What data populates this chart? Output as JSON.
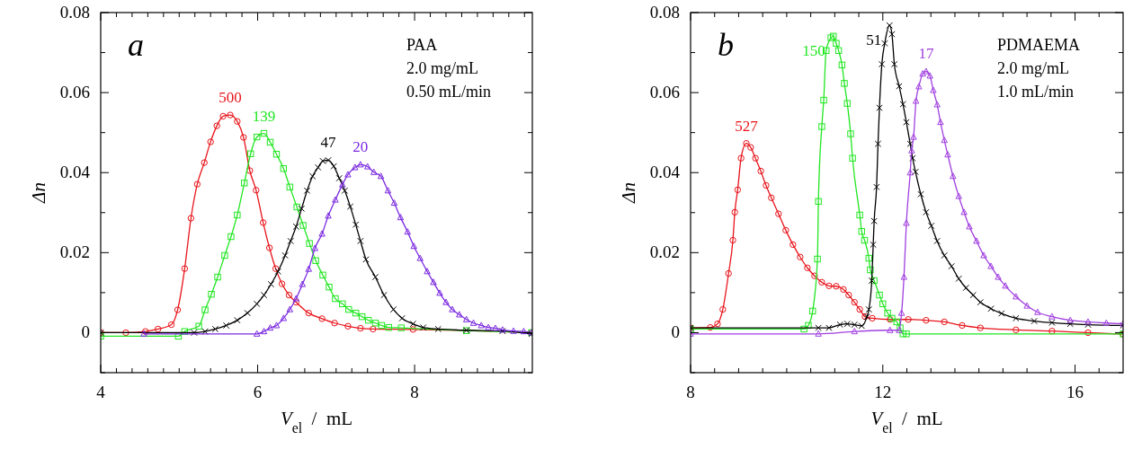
{
  "chart_data": [
    {
      "type": "line",
      "xlabel": "V$_{el}$  /  mL",
      "ylabel": "Δn",
      "annotations": [
        "a",
        "PAA",
        "2.0 mg/mL",
        "0.50 mL/min"
      ],
      "xlim": [
        4,
        9.5
      ],
      "ylim": [
        -0.01,
        0.08
      ],
      "xticks": [
        4,
        {
          "value": 4.2,
          "label": null
        },
        {
          "value": 4.4,
          "label": null
        },
        {
          "value": 4.6,
          "label": null
        },
        {
          "value": 4.8,
          "label": null
        },
        {
          "value": 5,
          "label": null
        },
        {
          "value": 5.2,
          "label": null
        },
        {
          "value": 5.4,
          "label": null
        },
        {
          "value": 5.6,
          "label": null
        },
        {
          "value": 5.8,
          "label": null
        },
        6,
        {
          "value": 6.2,
          "label": null
        },
        {
          "value": 6.4,
          "label": null
        },
        {
          "value": 6.6,
          "label": null
        },
        {
          "value": 6.8,
          "label": null
        },
        {
          "value": 7,
          "label": null
        },
        {
          "value": 7.2,
          "label": null
        },
        {
          "value": 7.4,
          "label": null
        },
        {
          "value": 7.6,
          "label": null
        },
        {
          "value": 7.8,
          "label": null
        },
        8,
        {
          "value": 8.2,
          "label": null
        },
        {
          "value": 8.4,
          "label": null
        },
        {
          "value": 8.6,
          "label": null
        },
        {
          "value": 8.8,
          "label": null
        },
        {
          "value": 9,
          "label": null
        },
        {
          "value": 9.2,
          "label": null
        },
        {
          "value": 9.4,
          "label": null
        }
      ],
      "yticks": [
        {
          "value": -0.01,
          "label": null
        },
        0,
        {
          "value": 0.01,
          "label": null
        },
        0.02,
        {
          "value": 0.03,
          "label": null
        },
        0.04,
        {
          "value": 0.05,
          "label": null
        },
        0.06,
        {
          "value": 0.07,
          "label": null
        },
        0.08
      ],
      "series": [
        {
          "name": "500",
          "color": "#e8141b",
          "marker": "circle",
          "x": [
            4.0,
            4.32,
            4.57,
            4.73,
            4.9,
            4.98,
            5.07,
            5.15,
            5.23,
            5.32,
            5.4,
            5.48,
            5.56,
            5.65,
            5.74,
            5.82,
            5.9,
            5.98,
            6.07,
            6.15,
            6.23,
            6.31,
            6.4,
            6.49,
            6.65,
            6.82,
            6.98,
            7.15,
            7.31,
            7.47,
            7.98,
            8.66,
            9.49
          ],
          "values": [
            0,
            0,
            0.0003,
            0.0009,
            0.002,
            0.0057,
            0.016,
            0.0286,
            0.0371,
            0.0425,
            0.0477,
            0.0517,
            0.0541,
            0.0544,
            0.0528,
            0.0488,
            0.0405,
            0.0356,
            0.0275,
            0.0212,
            0.016,
            0.0122,
            0.0094,
            0.0076,
            0.0049,
            0.0035,
            0.0024,
            0.0016,
            0.0011,
            0.0009,
            0.0008,
            null,
            0
          ]
        },
        {
          "name": "139",
          "color": "#22e622",
          "marker": "square",
          "x": [
            4.0,
            4.99,
            5.07,
            5.25,
            5.33,
            5.41,
            5.49,
            5.58,
            5.66,
            5.74,
            5.83,
            5.91,
            5.99,
            6.08,
            6.16,
            6.24,
            6.33,
            6.41,
            6.5,
            6.58,
            6.66,
            6.74,
            6.83,
            6.91,
            6.99,
            7.08,
            7.16,
            7.25,
            7.33,
            7.41,
            7.5,
            7.58,
            7.67,
            7.83,
            8.66,
            9.49
          ],
          "values": [
            -0.0009,
            -0.0009,
            0.0003,
            0.0016,
            0.0057,
            0.0096,
            0.0139,
            0.0193,
            0.024,
            0.0294,
            0.0374,
            0.0447,
            0.0489,
            0.0498,
            0.0476,
            0.0446,
            0.041,
            0.0364,
            0.0314,
            0.0268,
            0.0223,
            0.018,
            0.0144,
            0.0114,
            0.0085,
            0.0072,
            0.0058,
            0.0049,
            0.004,
            0.0031,
            0.0024,
            0.0018,
            0.0013,
            0.0012,
            0.0005,
            0
          ]
        },
        {
          "name": "47",
          "color": "#000000",
          "marker": "cross",
          "x": [
            4.0,
            5.19,
            5.33,
            5.46,
            5.6,
            5.74,
            5.87,
            5.99,
            6.08,
            6.17,
            6.26,
            6.35,
            6.42,
            6.49,
            6.56,
            6.63,
            6.7,
            6.77,
            6.83,
            6.9,
            6.97,
            7.04,
            7.11,
            7.18,
            7.25,
            7.31,
            7.38,
            7.5,
            7.61,
            7.73,
            7.84,
            7.98,
            8.11,
            8.3,
            8.66,
            9.12,
            9.49
          ],
          "values": [
            0,
            0,
            0.0003,
            0.0009,
            0.0018,
            0.0031,
            0.0049,
            0.0072,
            0.0094,
            0.0121,
            0.0153,
            0.0193,
            0.0229,
            0.0265,
            0.031,
            0.0355,
            0.0391,
            0.0413,
            0.0429,
            0.0431,
            0.0416,
            0.0386,
            0.0355,
            0.0315,
            0.027,
            0.0229,
            0.0183,
            0.0139,
            0.0094,
            0.0058,
            0.0036,
            0.0022,
            0.0013,
            0.0009,
            0.0006,
            0.0004,
            -0.0003
          ]
        },
        {
          "name": "20",
          "color": "#7b2be0",
          "marker": "triangle",
          "x": [
            4.55,
            5.99,
            6.08,
            6.16,
            6.24,
            6.33,
            6.41,
            6.49,
            6.57,
            6.65,
            6.73,
            6.82,
            6.9,
            6.99,
            7.08,
            7.15,
            7.24,
            7.31,
            7.4,
            7.48,
            7.57,
            7.66,
            7.74,
            7.82,
            7.91,
            7.99,
            8.07,
            8.16,
            8.24,
            8.32,
            8.4,
            8.48,
            8.57,
            8.66,
            8.75,
            8.85,
            8.94,
            9.03,
            9.12,
            9.26,
            9.39,
            9.49
          ],
          "values": [
            -0.0003,
            -0.0003,
            0.0003,
            0.0012,
            0.0018,
            0.0036,
            0.0058,
            0.0085,
            0.0121,
            0.0159,
            0.0211,
            0.0247,
            0.0292,
            0.0332,
            0.037,
            0.0395,
            0.0413,
            0.042,
            0.0415,
            0.0401,
            0.0391,
            0.0355,
            0.0324,
            0.0288,
            0.0252,
            0.0216,
            0.0186,
            0.0153,
            0.0126,
            0.0099,
            0.0076,
            0.0058,
            0.0045,
            0.0033,
            0.0024,
            0.0018,
            0.0013,
            0.0011,
            0.0007,
            0.0004,
            0.0003,
            0
          ]
        }
      ]
    },
    {
      "type": "line",
      "xlabel": "V$_{el}$  /  mL",
      "ylabel": "Δn",
      "annotations": [
        "b",
        "PDMAEMA",
        "2.0 mg/mL",
        "1.0 mL/min"
      ],
      "xlim": [
        8,
        17
      ],
      "ylim": [
        -0.01,
        0.08
      ],
      "xticks": [
        8,
        {
          "value": 8.5,
          "label": null
        },
        {
          "value": 9,
          "label": null
        },
        {
          "value": 9.5,
          "label": null
        },
        {
          "value": 10,
          "label": null
        },
        {
          "value": 10.5,
          "label": null
        },
        {
          "value": 11,
          "label": null
        },
        {
          "value": 11.5,
          "label": null
        },
        12,
        {
          "value": 12.5,
          "label": null
        },
        {
          "value": 13,
          "label": null
        },
        {
          "value": 13.5,
          "label": null
        },
        {
          "value": 14,
          "label": null
        },
        {
          "value": 14.5,
          "label": null
        },
        {
          "value": 15,
          "label": null
        },
        {
          "value": 15.5,
          "label": null
        },
        16,
        {
          "value": 16.5,
          "label": null
        }
      ],
      "yticks": [
        {
          "value": -0.01,
          "label": null
        },
        0,
        {
          "value": 0.01,
          "label": null
        },
        0.02,
        {
          "value": 0.03,
          "label": null
        },
        0.04,
        {
          "value": 0.05,
          "label": null
        },
        0.06,
        {
          "value": 0.07,
          "label": null
        },
        0.08
      ],
      "series": [
        {
          "name": "527",
          "color": "#e8141b",
          "marker": "circle",
          "x": [
            8.0,
            8.41,
            8.56,
            8.67,
            8.79,
            8.88,
            8.92,
            8.98,
            9.05,
            9.16,
            9.25,
            9.35,
            9.46,
            9.57,
            9.68,
            9.83,
            9.98,
            10.13,
            10.28,
            10.43,
            10.58,
            10.73,
            10.88,
            11.03,
            11.18,
            11.29,
            11.41,
            11.52,
            11.63,
            11.78,
            12.15,
            12.53,
            12.9,
            13.28,
            13.65,
            14.03,
            14.77,
            15.52,
            16.27,
            17.0
          ],
          "values": [
            0.0012,
            0.0013,
            0.0022,
            0.0058,
            0.0148,
            0.0231,
            0.0301,
            0.0357,
            0.0436,
            0.0473,
            0.0463,
            0.0436,
            0.0404,
            0.0368,
            0.0337,
            0.0297,
            0.0256,
            0.022,
            0.0189,
            0.0162,
            0.0142,
            0.0126,
            0.0117,
            0.0116,
            0.0108,
            0.0094,
            0.0076,
            0.0058,
            0.004,
            0.0036,
            0.0033,
            0.0033,
            0.0031,
            0.0027,
            0.0018,
            0.0012,
            0.0007,
            0.0004,
            0,
            -0.0004
          ]
        },
        {
          "name": "150",
          "color": "#22e622",
          "marker": "square",
          "x": [
            8.0,
            10.36,
            10.45,
            10.54,
            10.64,
            10.66,
            10.73,
            10.77,
            10.82,
            10.92,
            10.97,
            11.03,
            11.08,
            11.15,
            11.2,
            11.26,
            11.33,
            11.37,
            11.52,
            11.56,
            11.62,
            11.71,
            11.74,
            11.82,
            11.93,
            12.0,
            12.1,
            12.19,
            12.29,
            12.36,
            12.42,
            12.49,
            17.0
          ],
          "values": [
            0.0009,
            0.0009,
            0.0018,
            0.0054,
            0.0184,
            0.0328,
            0.0515,
            0.0581,
            0.0705,
            0.0737,
            0.0741,
            0.0723,
            0.0705,
            0.0669,
            0.0623,
            0.0573,
            0.0497,
            0.0436,
            0.0294,
            0.0253,
            0.0231,
            0.0186,
            0.0157,
            0.013,
            0.0094,
            0.0072,
            0.0049,
            0.0036,
            0.0027,
            0.0012,
            -0.0003,
            -0.0003,
            -0.0003
          ]
        },
        {
          "name": "51",
          "color": "#000000",
          "marker": "cross",
          "x": [
            8.0,
            10.66,
            10.88,
            11.11,
            11.26,
            11.41,
            11.56,
            11.67,
            11.71,
            11.77,
            11.8,
            11.82,
            11.87,
            11.9,
            11.93,
            11.98,
            12.04,
            12.14,
            12.19,
            12.24,
            12.34,
            12.42,
            12.49,
            12.57,
            12.62,
            12.68,
            12.79,
            12.9,
            13.01,
            13.13,
            13.28,
            13.43,
            13.58,
            13.73,
            13.88,
            14.03,
            14.25,
            14.47,
            14.77,
            15.15,
            15.52,
            15.9,
            16.27,
            17.0
          ],
          "values": [
            0.0012,
            0.0012,
            0.0012,
            0.002,
            0.0022,
            0.002,
            0.0017,
            0.004,
            0.0058,
            0.013,
            0.022,
            0.0279,
            0.0364,
            0.0472,
            0.0562,
            0.0671,
            0.0723,
            0.0768,
            0.0746,
            0.0671,
            0.0616,
            0.0571,
            0.0526,
            0.0472,
            0.0436,
            0.0402,
            0.0346,
            0.0301,
            0.0267,
            0.0229,
            0.0193,
            0.0166,
            0.0135,
            0.0112,
            0.0094,
            0.0076,
            0.006,
            0.0048,
            0.0036,
            0.0029,
            0.0025,
            0.0022,
            0.002,
            0.0018
          ]
        },
        {
          "name": "17",
          "color": "#a040e0",
          "marker": "triangle",
          "x": [
            8.0,
            10.66,
            11.41,
            12.15,
            12.34,
            12.39,
            12.44,
            12.49,
            12.57,
            12.6,
            12.64,
            12.69,
            12.75,
            12.83,
            12.9,
            12.98,
            13.05,
            13.13,
            13.2,
            13.28,
            13.35,
            13.46,
            13.58,
            13.69,
            13.8,
            13.95,
            14.1,
            14.25,
            14.4,
            14.55,
            14.77,
            15.0,
            15.22,
            15.52,
            15.9,
            16.27,
            16.65,
            17.0
          ],
          "values": [
            -0.0003,
            -0.0003,
            0.0003,
            0.0006,
            0.0006,
            0.0049,
            0.0139,
            0.0274,
            0.04,
            0.0455,
            0.0489,
            0.0579,
            0.0615,
            0.0647,
            0.0653,
            0.0642,
            0.0606,
            0.057,
            0.0526,
            0.0481,
            0.0445,
            0.0391,
            0.0341,
            0.0301,
            0.0265,
            0.0229,
            0.0193,
            0.0166,
            0.0139,
            0.0117,
            0.009,
            0.0067,
            0.0051,
            0.004,
            0.0031,
            0.0027,
            0.0024,
            0.0022
          ]
        }
      ]
    }
  ]
}
